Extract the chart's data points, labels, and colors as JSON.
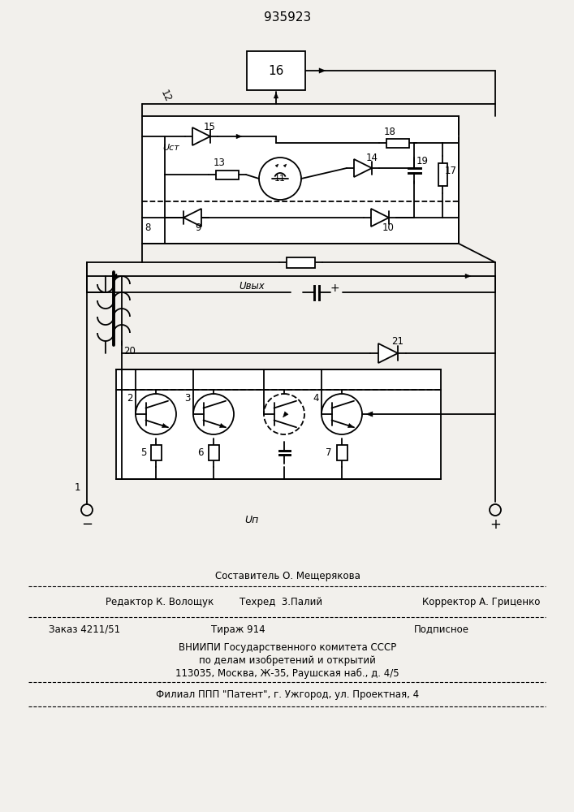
{
  "title": "935923",
  "bg_color": "#f2f0ec",
  "lc": "black",
  "lw": 1.3,
  "footer": {
    "f1": "Составитель О. Мещерякова",
    "f2l": "Редактор К. Волощук",
    "f2m": "Техред  3.Палий",
    "f2r": "Корректор А. Гриценко",
    "f3l": "Заказ 4211/51",
    "f3m": "Тираж 914",
    "f3r": "Подписное",
    "f4": "ВНИИПИ Государственного комитета СССР",
    "f5": "по делам изобретений и открытий",
    "f6": "113035, Москва, Ж-35, Раушская наб., д. 4/5",
    "f7": "Филиал ППП \"Патент\", г. Ужгород, ул. Проектная, 4"
  }
}
